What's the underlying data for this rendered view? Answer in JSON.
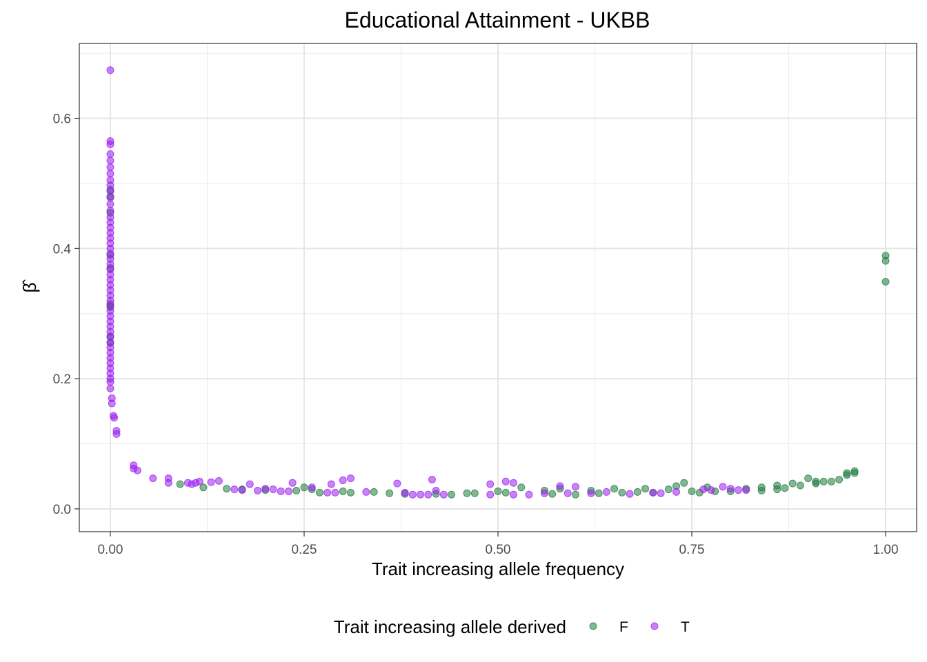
{
  "chart_data": {
    "type": "scatter",
    "title": "Educational Attainment - UKBB",
    "xlabel": "Trait increasing allele frequency",
    "ylabel": "β̂",
    "xlim": [
      -0.04,
      1.04
    ],
    "ylim": [
      -0.035,
      0.715
    ],
    "x_ticks": [
      0.0,
      0.25,
      0.5,
      0.75,
      1.0
    ],
    "x_tick_labels": [
      "0.00",
      "0.25",
      "0.50",
      "0.75",
      "1.00"
    ],
    "y_ticks": [
      0.0,
      0.2,
      0.4,
      0.6
    ],
    "y_tick_labels": [
      "0.0",
      "0.2",
      "0.4",
      "0.6"
    ],
    "grid": true,
    "legend": {
      "title": "Trait increasing allele derived",
      "position": "bottom",
      "entries": [
        {
          "label": "F",
          "color": "#1e7b3c"
        },
        {
          "label": "T",
          "color": "#9b1ef0"
        }
      ]
    },
    "series": [
      {
        "name": "F",
        "color": "#1e7b3c",
        "points": [
          [
            0.0,
            0.49
          ],
          [
            0.0,
            0.48
          ],
          [
            0.0,
            0.455
          ],
          [
            0.0,
            0.39
          ],
          [
            0.0,
            0.37
          ],
          [
            0.0,
            0.315
          ],
          [
            0.0,
            0.31
          ],
          [
            0.0,
            0.265
          ],
          [
            0.0,
            0.255
          ],
          [
            0.09,
            0.038
          ],
          [
            0.12,
            0.033
          ],
          [
            0.15,
            0.031
          ],
          [
            0.17,
            0.03
          ],
          [
            0.2,
            0.029
          ],
          [
            0.24,
            0.028
          ],
          [
            0.25,
            0.033
          ],
          [
            0.26,
            0.03
          ],
          [
            0.27,
            0.025
          ],
          [
            0.3,
            0.027
          ],
          [
            0.31,
            0.025
          ],
          [
            0.34,
            0.026
          ],
          [
            0.36,
            0.024
          ],
          [
            0.38,
            0.023
          ],
          [
            0.42,
            0.023
          ],
          [
            0.44,
            0.022
          ],
          [
            0.46,
            0.024
          ],
          [
            0.47,
            0.024
          ],
          [
            0.5,
            0.027
          ],
          [
            0.51,
            0.025
          ],
          [
            0.53,
            0.033
          ],
          [
            0.56,
            0.028
          ],
          [
            0.57,
            0.023
          ],
          [
            0.58,
            0.031
          ],
          [
            0.6,
            0.022
          ],
          [
            0.62,
            0.028
          ],
          [
            0.63,
            0.024
          ],
          [
            0.65,
            0.031
          ],
          [
            0.66,
            0.025
          ],
          [
            0.68,
            0.026
          ],
          [
            0.69,
            0.031
          ],
          [
            0.7,
            0.025
          ],
          [
            0.72,
            0.03
          ],
          [
            0.73,
            0.035
          ],
          [
            0.74,
            0.04
          ],
          [
            0.75,
            0.027
          ],
          [
            0.76,
            0.025
          ],
          [
            0.77,
            0.033
          ],
          [
            0.78,
            0.027
          ],
          [
            0.8,
            0.027
          ],
          [
            0.82,
            0.031
          ],
          [
            0.84,
            0.033
          ],
          [
            0.84,
            0.028
          ],
          [
            0.86,
            0.03
          ],
          [
            0.86,
            0.036
          ],
          [
            0.87,
            0.032
          ],
          [
            0.88,
            0.039
          ],
          [
            0.89,
            0.036
          ],
          [
            0.9,
            0.047
          ],
          [
            0.91,
            0.039
          ],
          [
            0.91,
            0.042
          ],
          [
            0.92,
            0.042
          ],
          [
            0.93,
            0.042
          ],
          [
            0.94,
            0.045
          ],
          [
            0.95,
            0.052
          ],
          [
            0.95,
            0.055
          ],
          [
            0.96,
            0.055
          ],
          [
            0.96,
            0.058
          ],
          [
            1.0,
            0.389
          ],
          [
            1.0,
            0.381
          ],
          [
            1.0,
            0.349
          ]
        ]
      },
      {
        "name": "T",
        "color": "#9b1ef0",
        "points": [
          [
            0.0,
            0.674
          ],
          [
            0.0,
            0.565
          ],
          [
            0.0,
            0.56
          ],
          [
            0.0,
            0.545
          ],
          [
            0.0,
            0.535
          ],
          [
            0.0,
            0.525
          ],
          [
            0.0,
            0.515
          ],
          [
            0.0,
            0.505
          ],
          [
            0.0,
            0.497
          ],
          [
            0.0,
            0.488
          ],
          [
            0.0,
            0.478
          ],
          [
            0.0,
            0.468
          ],
          [
            0.0,
            0.458
          ],
          [
            0.0,
            0.448
          ],
          [
            0.0,
            0.44
          ],
          [
            0.0,
            0.432
          ],
          [
            0.0,
            0.424
          ],
          [
            0.0,
            0.416
          ],
          [
            0.0,
            0.408
          ],
          [
            0.0,
            0.4
          ],
          [
            0.0,
            0.392
          ],
          [
            0.0,
            0.384
          ],
          [
            0.0,
            0.376
          ],
          [
            0.0,
            0.368
          ],
          [
            0.0,
            0.36
          ],
          [
            0.0,
            0.352
          ],
          [
            0.0,
            0.344
          ],
          [
            0.0,
            0.336
          ],
          [
            0.0,
            0.328
          ],
          [
            0.0,
            0.32
          ],
          [
            0.0,
            0.312
          ],
          [
            0.0,
            0.304
          ],
          [
            0.0,
            0.296
          ],
          [
            0.0,
            0.288
          ],
          [
            0.0,
            0.28
          ],
          [
            0.0,
            0.272
          ],
          [
            0.0,
            0.264
          ],
          [
            0.0,
            0.256
          ],
          [
            0.0,
            0.248
          ],
          [
            0.0,
            0.24
          ],
          [
            0.0,
            0.232
          ],
          [
            0.0,
            0.224
          ],
          [
            0.0,
            0.216
          ],
          [
            0.0,
            0.208
          ],
          [
            0.0,
            0.2
          ],
          [
            0.0,
            0.195
          ],
          [
            0.0,
            0.185
          ],
          [
            0.002,
            0.17
          ],
          [
            0.002,
            0.162
          ],
          [
            0.004,
            0.143
          ],
          [
            0.005,
            0.14
          ],
          [
            0.008,
            0.12
          ],
          [
            0.008,
            0.115
          ],
          [
            0.03,
            0.067
          ],
          [
            0.03,
            0.062
          ],
          [
            0.035,
            0.059
          ],
          [
            0.055,
            0.047
          ],
          [
            0.075,
            0.047
          ],
          [
            0.075,
            0.04
          ],
          [
            0.1,
            0.04
          ],
          [
            0.105,
            0.038
          ],
          [
            0.11,
            0.04
          ],
          [
            0.115,
            0.042
          ],
          [
            0.13,
            0.041
          ],
          [
            0.14,
            0.043
          ],
          [
            0.16,
            0.03
          ],
          [
            0.17,
            0.029
          ],
          [
            0.18,
            0.038
          ],
          [
            0.19,
            0.028
          ],
          [
            0.2,
            0.031
          ],
          [
            0.21,
            0.03
          ],
          [
            0.22,
            0.027
          ],
          [
            0.23,
            0.027
          ],
          [
            0.235,
            0.04
          ],
          [
            0.26,
            0.033
          ],
          [
            0.28,
            0.025
          ],
          [
            0.285,
            0.038
          ],
          [
            0.29,
            0.025
          ],
          [
            0.3,
            0.044
          ],
          [
            0.31,
            0.047
          ],
          [
            0.33,
            0.026
          ],
          [
            0.37,
            0.039
          ],
          [
            0.38,
            0.025
          ],
          [
            0.39,
            0.022
          ],
          [
            0.4,
            0.022
          ],
          [
            0.41,
            0.022
          ],
          [
            0.415,
            0.045
          ],
          [
            0.42,
            0.028
          ],
          [
            0.43,
            0.022
          ],
          [
            0.49,
            0.038
          ],
          [
            0.49,
            0.022
          ],
          [
            0.51,
            0.042
          ],
          [
            0.52,
            0.04
          ],
          [
            0.52,
            0.022
          ],
          [
            0.54,
            0.022
          ],
          [
            0.56,
            0.024
          ],
          [
            0.58,
            0.035
          ],
          [
            0.59,
            0.024
          ],
          [
            0.6,
            0.034
          ],
          [
            0.62,
            0.024
          ],
          [
            0.64,
            0.026
          ],
          [
            0.67,
            0.023
          ],
          [
            0.7,
            0.025
          ],
          [
            0.71,
            0.024
          ],
          [
            0.73,
            0.026
          ],
          [
            0.765,
            0.03
          ],
          [
            0.775,
            0.029
          ],
          [
            0.79,
            0.034
          ],
          [
            0.8,
            0.031
          ],
          [
            0.81,
            0.029
          ],
          [
            0.82,
            0.029
          ]
        ]
      }
    ]
  }
}
